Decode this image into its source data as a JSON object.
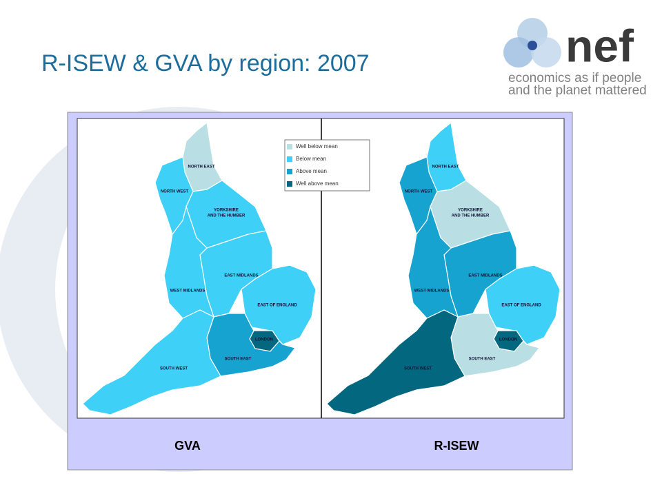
{
  "title": "R-ISEW & GVA by region: 2007",
  "logo": {
    "name": "nef",
    "tagline": [
      "economics as if people",
      "and the planet mattered"
    ]
  },
  "legend": [
    {
      "label": "Well below mean",
      "color": "#b9dfe4"
    },
    {
      "label": "Below mean",
      "color": "#3fd0f7"
    },
    {
      "label": "Above mean",
      "color": "#17a3cf"
    },
    {
      "label": "Well above mean",
      "color": "#03687f"
    }
  ],
  "regions": [
    {
      "lines": [
        "NORTH EAST"
      ]
    },
    {
      "lines": [
        "NORTH WEST"
      ]
    },
    {
      "lines": [
        "YORKSHIRE",
        "AND THE HUMBER"
      ]
    },
    {
      "lines": [
        "EAST MIDLANDS"
      ]
    },
    {
      "lines": [
        "WEST MIDLANDS"
      ]
    },
    {
      "lines": [
        "EAST OF ENGLAND"
      ]
    },
    {
      "lines": [
        "LONDON"
      ]
    },
    {
      "lines": [
        "SOUTH EAST"
      ]
    },
    {
      "lines": [
        "SOUTH WEST"
      ]
    }
  ],
  "maps": [
    {
      "title": "GVA",
      "classes": [
        0,
        1,
        1,
        1,
        1,
        1,
        3,
        2,
        1
      ]
    },
    {
      "title": "R-ISEW",
      "classes": [
        1,
        2,
        0,
        2,
        2,
        1,
        3,
        0,
        3
      ]
    }
  ]
}
